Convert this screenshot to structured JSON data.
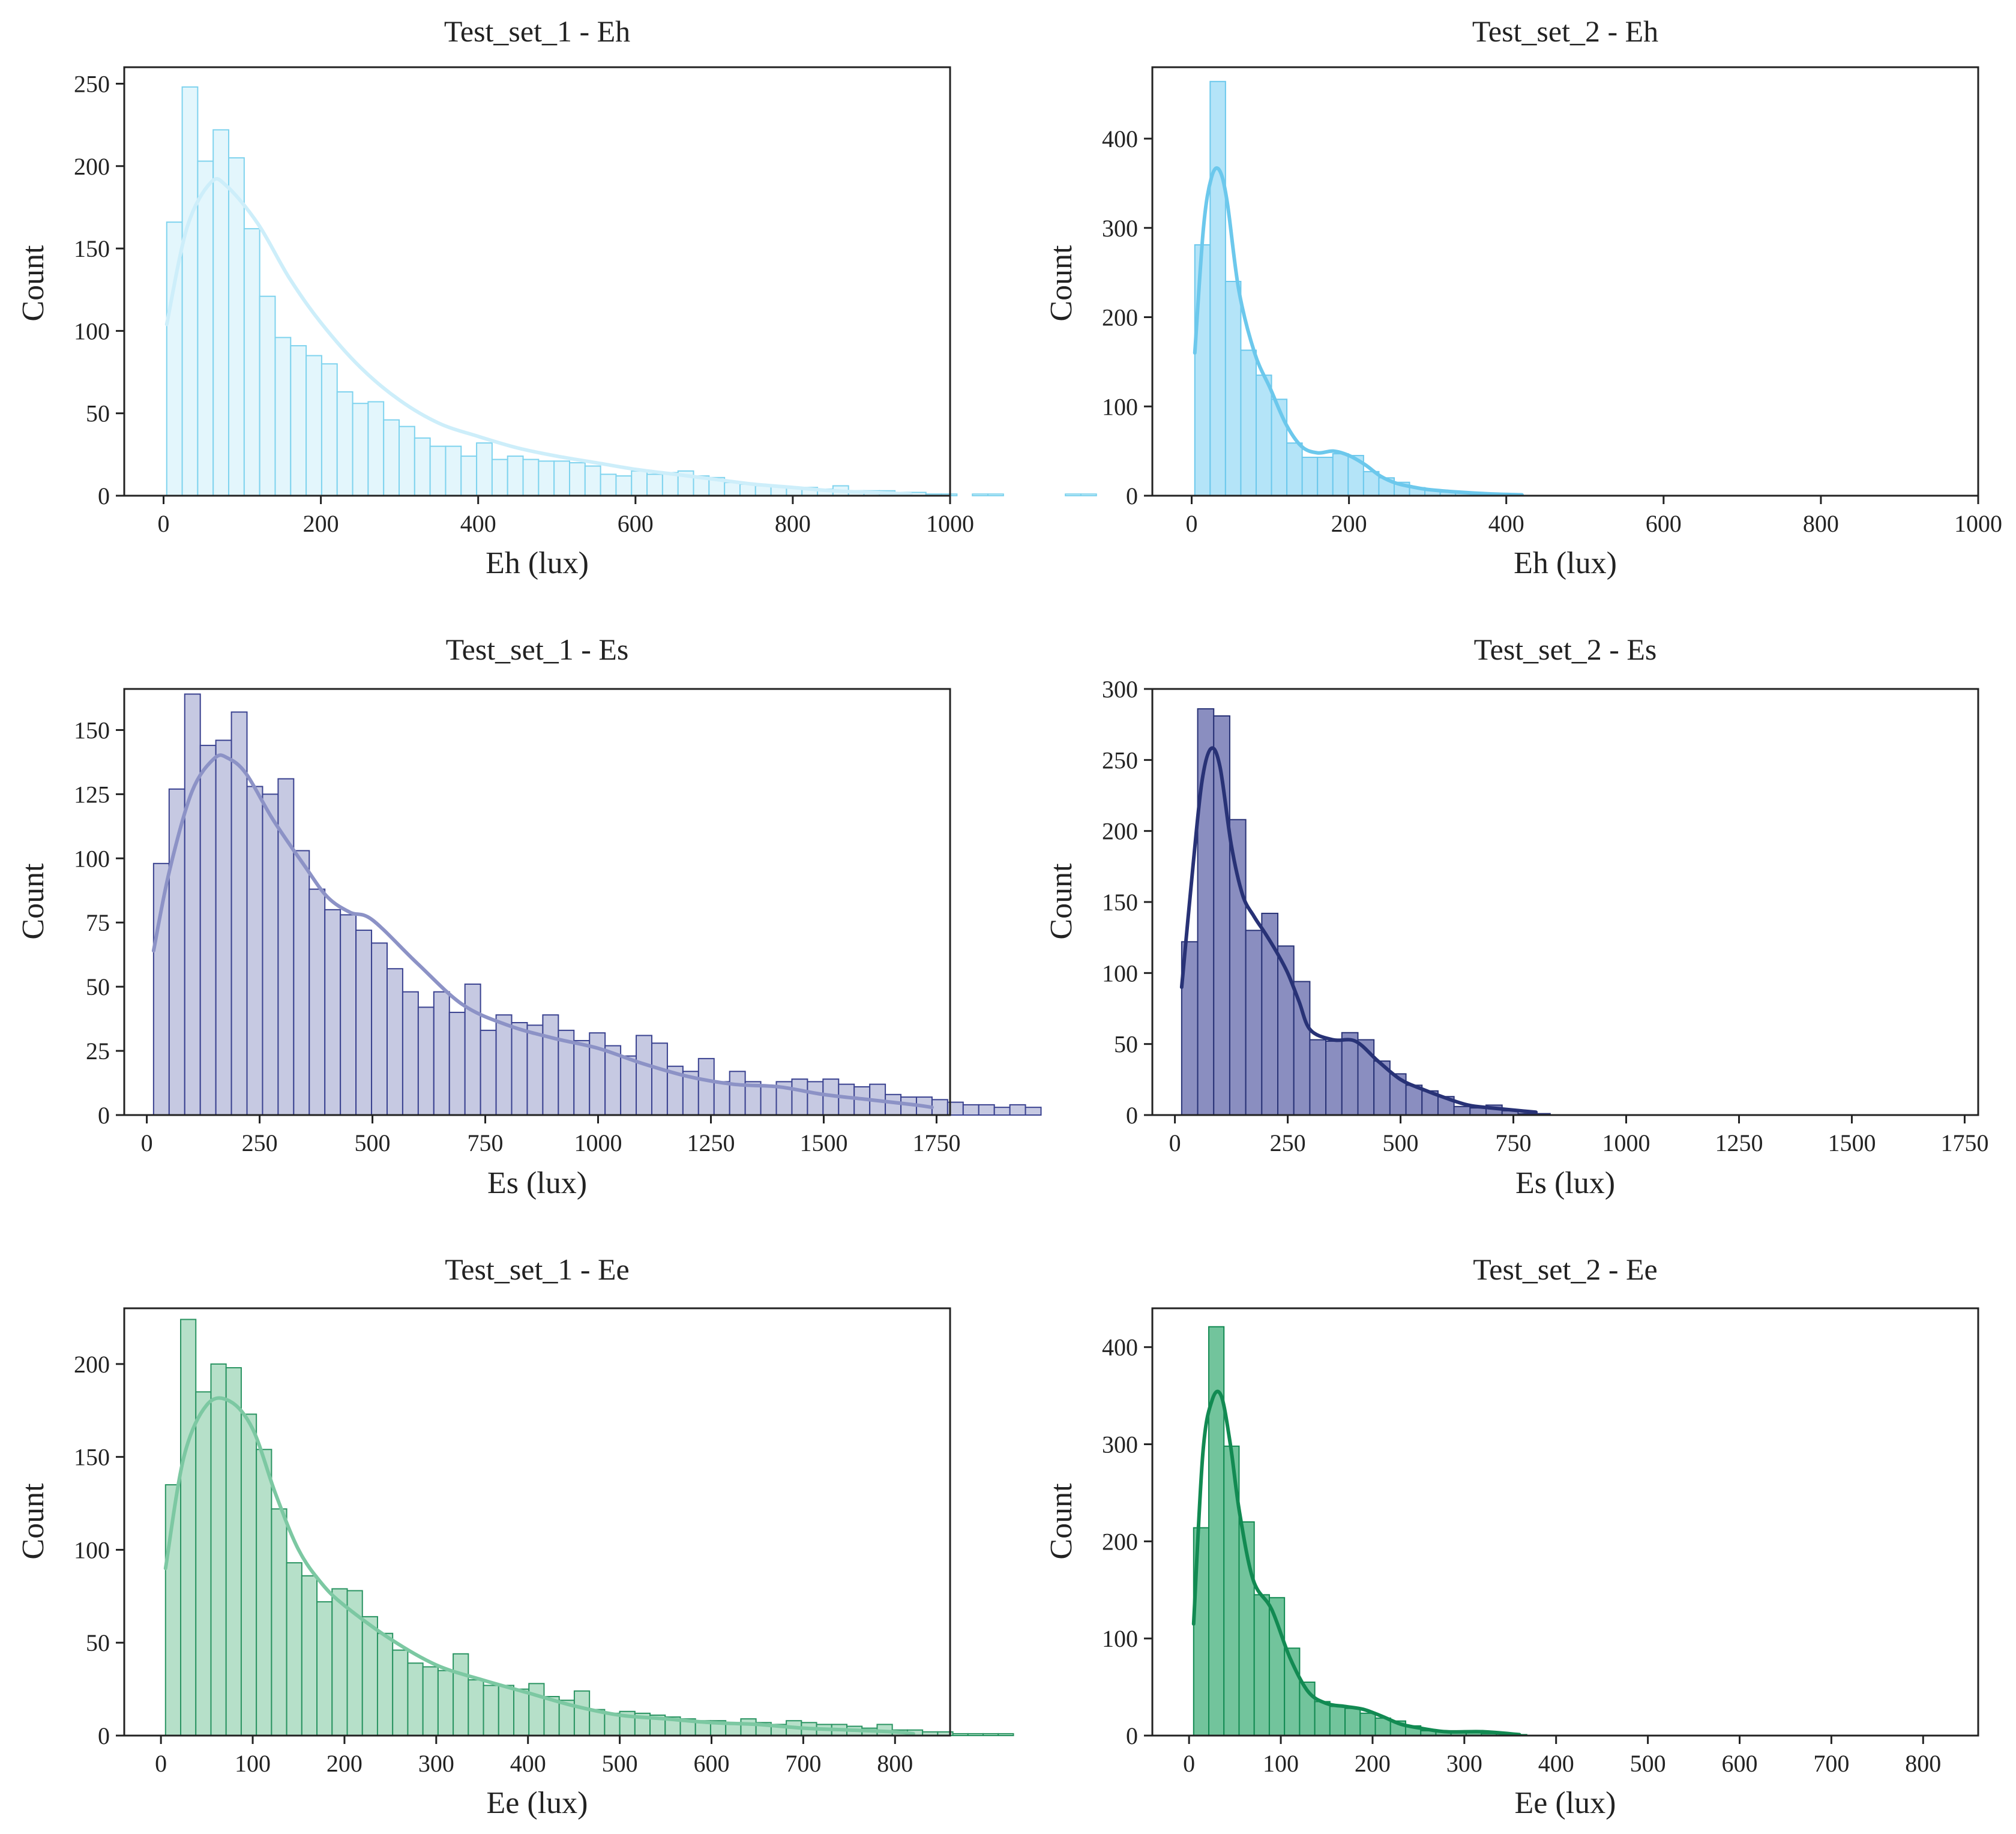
{
  "chart_data": [
    {
      "type": "histogram",
      "title": "Test_set_1 - Eh",
      "xlabel": "Eh (lux)",
      "ylabel": "Count",
      "xlim": [
        -50,
        1000
      ],
      "ylim": [
        0,
        260
      ],
      "xticks": [
        0,
        200,
        400,
        600,
        800,
        1000
      ],
      "yticks": [
        0,
        50,
        100,
        150,
        200,
        250
      ],
      "bin_start": 4,
      "bin_width": 19.7,
      "counts": [
        166,
        248,
        203,
        222,
        205,
        162,
        121,
        96,
        91,
        85,
        80,
        63,
        56,
        57,
        46,
        42,
        35,
        30,
        30,
        24,
        32,
        22,
        24,
        22,
        21,
        21,
        20,
        18,
        13,
        12,
        15,
        13,
        14,
        15,
        12,
        11,
        8,
        7,
        6,
        6,
        5,
        5,
        4,
        6,
        3,
        3,
        3,
        2,
        2,
        1,
        1,
        0,
        1,
        1,
        0,
        0,
        0,
        0,
        1,
        1
      ],
      "kde": {
        "x": [
          4,
          30,
          60,
          80,
          120,
          160,
          200,
          250,
          300,
          350,
          400,
          450,
          500,
          550,
          600,
          650,
          700,
          750,
          800,
          850,
          900,
          950
        ],
        "y": [
          104,
          163,
          190,
          188,
          165,
          132,
          105,
          78,
          58,
          44,
          36,
          29,
          24,
          20,
          16,
          13,
          10,
          7,
          5,
          3,
          2,
          1
        ]
      },
      "bar_fill": "#e3f6fc",
      "bar_stroke": "#7fd3ee",
      "kde_color": "#cdeefa"
    },
    {
      "type": "histogram",
      "title": "Test_set_2 - Eh",
      "xlabel": "Eh (lux)",
      "ylabel": "Count",
      "xlim": [
        -50,
        1000
      ],
      "ylim": [
        0,
        480
      ],
      "xticks": [
        0,
        200,
        400,
        600,
        800,
        1000
      ],
      "yticks": [
        0,
        100,
        200,
        300,
        400
      ],
      "bin_start": 4,
      "bin_width": 19.5,
      "counts": [
        281,
        464,
        240,
        163,
        135,
        108,
        59,
        43,
        43,
        47,
        45,
        27,
        20,
        15,
        9,
        6,
        4,
        3,
        2,
        1,
        1
      ],
      "kde": {
        "x": [
          4,
          15,
          25,
          35,
          45,
          60,
          80,
          100,
          120,
          140,
          160,
          180,
          200,
          220,
          240,
          260,
          280,
          300,
          340,
          380,
          420
        ],
        "y": [
          160,
          300,
          356,
          365,
          330,
          230,
          160,
          120,
          80,
          55,
          48,
          50,
          45,
          35,
          22,
          14,
          10,
          7,
          4,
          2,
          1
        ]
      },
      "bar_fill": "#b4e4f8",
      "bar_stroke": "#6cc8ec",
      "kde_color": "#6cc8ec"
    },
    {
      "type": "histogram",
      "title": "Test_set_1 - Es",
      "xlabel": "Es (lux)",
      "ylabel": "Count",
      "xlim": [
        -50,
        1780
      ],
      "ylim": [
        0,
        166
      ],
      "xticks": [
        0,
        250,
        500,
        750,
        1000,
        1250,
        1500,
        1750
      ],
      "yticks": [
        0,
        25,
        50,
        75,
        100,
        125,
        150
      ],
      "bin_start": 15,
      "bin_width": 34.5,
      "counts": [
        98,
        127,
        164,
        144,
        146,
        157,
        128,
        125,
        131,
        103,
        88,
        80,
        78,
        72,
        67,
        57,
        48,
        42,
        48,
        40,
        51,
        33,
        39,
        36,
        35,
        39,
        33,
        29,
        32,
        27,
        23,
        31,
        28,
        19,
        17,
        22,
        13,
        17,
        13,
        11,
        13,
        14,
        13,
        14,
        12,
        11,
        12,
        8,
        7,
        7,
        6,
        5,
        4,
        4,
        3,
        4,
        3
      ],
      "kde": {
        "x": [
          15,
          50,
          100,
          150,
          180,
          220,
          280,
          350,
          400,
          450,
          500,
          600,
          700,
          800,
          900,
          1000,
          1100,
          1200,
          1300,
          1400,
          1500,
          1600,
          1700,
          1740
        ],
        "y": [
          64,
          95,
          126,
          139,
          139,
          133,
          115,
          97,
          85,
          79,
          76,
          59,
          43,
          35,
          30,
          26,
          20,
          15,
          12,
          11,
          8,
          6,
          4,
          3
        ]
      },
      "bar_fill": "#c6c9e2",
      "bar_stroke": "#3a4290",
      "kde_color": "#8c92c6"
    },
    {
      "type": "histogram",
      "title": "Test_set_2 - Es",
      "xlabel": "Es (lux)",
      "ylabel": "Count",
      "xlim": [
        -50,
        1780
      ],
      "ylim": [
        0,
        300
      ],
      "xticks": [
        0,
        250,
        500,
        750,
        1000,
        1250,
        1500,
        1750
      ],
      "yticks": [
        0,
        50,
        100,
        150,
        200,
        250,
        300
      ],
      "bin_start": 15,
      "bin_width": 35.5,
      "counts": [
        122,
        286,
        281,
        208,
        130,
        142,
        119,
        94,
        53,
        52,
        58,
        53,
        38,
        29,
        21,
        17,
        13,
        6,
        5,
        7,
        3,
        1,
        1
      ],
      "kde": {
        "x": [
          15,
          40,
          60,
          80,
          100,
          125,
          150,
          175,
          200,
          225,
          250,
          275,
          300,
          350,
          400,
          450,
          500,
          550,
          600,
          650,
          700,
          800
        ],
        "y": [
          90,
          175,
          235,
          258,
          245,
          190,
          155,
          140,
          128,
          115,
          100,
          80,
          60,
          53,
          52,
          38,
          25,
          18,
          12,
          7,
          5,
          2
        ]
      },
      "bar_fill": "#8a8ec0",
      "bar_stroke": "#283276",
      "kde_color": "#283276"
    },
    {
      "type": "histogram",
      "title": "Test_set_1 - Ee",
      "xlabel": "Ee (lux)",
      "ylabel": "Count",
      "xlim": [
        -40,
        860
      ],
      "ylim": [
        0,
        230
      ],
      "xticks": [
        0,
        100,
        200,
        300,
        400,
        500,
        600,
        700,
        800
      ],
      "yticks": [
        0,
        50,
        100,
        150,
        200
      ],
      "bin_start": 5,
      "bin_width": 16.5,
      "counts": [
        135,
        224,
        185,
        200,
        198,
        173,
        154,
        122,
        93,
        86,
        72,
        79,
        78,
        64,
        55,
        46,
        39,
        37,
        35,
        44,
        30,
        27,
        27,
        25,
        28,
        21,
        19,
        24,
        14,
        12,
        13,
        12,
        11,
        10,
        9,
        8,
        8,
        7,
        9,
        7,
        6,
        8,
        7,
        6,
        6,
        5,
        4,
        6,
        3,
        3,
        2,
        2,
        1,
        1,
        1,
        1
      ],
      "kde": {
        "x": [
          5,
          25,
          50,
          75,
          100,
          125,
          150,
          175,
          200,
          250,
          300,
          350,
          400,
          450,
          500,
          550,
          600,
          650,
          700,
          750,
          800,
          820
        ],
        "y": [
          90,
          150,
          178,
          180,
          165,
          130,
          100,
          82,
          70,
          52,
          38,
          30,
          23,
          16,
          11,
          9,
          7,
          6,
          4,
          3,
          2,
          1
        ]
      },
      "bar_fill": "#b6e0c9",
      "bar_stroke": "#2a9462",
      "kde_color": "#7cc8a2"
    },
    {
      "type": "histogram",
      "title": "Test_set_2 - Ee",
      "xlabel": "Ee (lux)",
      "ylabel": "Count",
      "xlim": [
        -40,
        860
      ],
      "ylim": [
        0,
        440
      ],
      "xticks": [
        0,
        100,
        200,
        300,
        400,
        500,
        600,
        700,
        800
      ],
      "yticks": [
        0,
        100,
        200,
        300,
        400
      ],
      "bin_start": 5,
      "bin_width": 16.5,
      "counts": [
        214,
        421,
        298,
        220,
        145,
        142,
        90,
        55,
        35,
        30,
        28,
        23,
        18,
        15,
        10,
        5,
        4,
        3,
        3,
        2,
        2,
        1
      ],
      "kde": {
        "x": [
          5,
          15,
          25,
          35,
          45,
          55,
          70,
          90,
          110,
          130,
          150,
          170,
          190,
          210,
          230,
          250,
          280,
          320,
          360
        ],
        "y": [
          115,
          290,
          345,
          350,
          300,
          230,
          160,
          130,
          80,
          45,
          33,
          30,
          27,
          20,
          12,
          8,
          4,
          4,
          1
        ]
      },
      "bar_fill": "#72c49c",
      "bar_stroke": "#128a52",
      "kde_color": "#128a52"
    }
  ]
}
